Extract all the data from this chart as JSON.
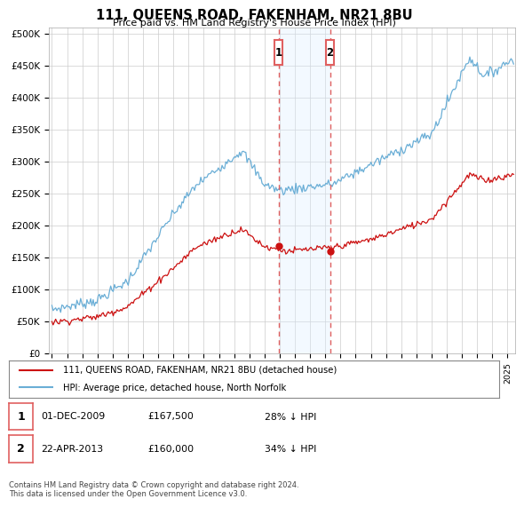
{
  "title": "111, QUEENS ROAD, FAKENHAM, NR21 8BU",
  "subtitle": "Price paid vs. HM Land Registry's House Price Index (HPI)",
  "ylabel_ticks": [
    "£0",
    "£50K",
    "£100K",
    "£150K",
    "£200K",
    "£250K",
    "£300K",
    "£350K",
    "£400K",
    "£450K",
    "£500K"
  ],
  "ytick_values": [
    0,
    50000,
    100000,
    150000,
    200000,
    250000,
    300000,
    350000,
    400000,
    450000,
    500000
  ],
  "ylim": [
    0,
    510000
  ],
  "xlim_start": 1994.8,
  "xlim_end": 2025.5,
  "marker1_x": 2009.92,
  "marker1_y": 167500,
  "marker2_x": 2013.31,
  "marker2_y": 160000,
  "shade_color": "#ddeeff",
  "dashed_color": "#e06060",
  "hpi_color": "#6aaed6",
  "price_color": "#cc1111",
  "background_color": "#ffffff",
  "grid_color": "#cccccc",
  "legend_line1": "111, QUEENS ROAD, FAKENHAM, NR21 8BU (detached house)",
  "legend_line2": "HPI: Average price, detached house, North Norfolk",
  "table_row1": [
    "1",
    "01-DEC-2009",
    "£167,500",
    "28% ↓ HPI"
  ],
  "table_row2": [
    "2",
    "22-APR-2013",
    "£160,000",
    "34% ↓ HPI"
  ],
  "footnote": "Contains HM Land Registry data © Crown copyright and database right 2024.\nThis data is licensed under the Open Government Licence v3.0."
}
